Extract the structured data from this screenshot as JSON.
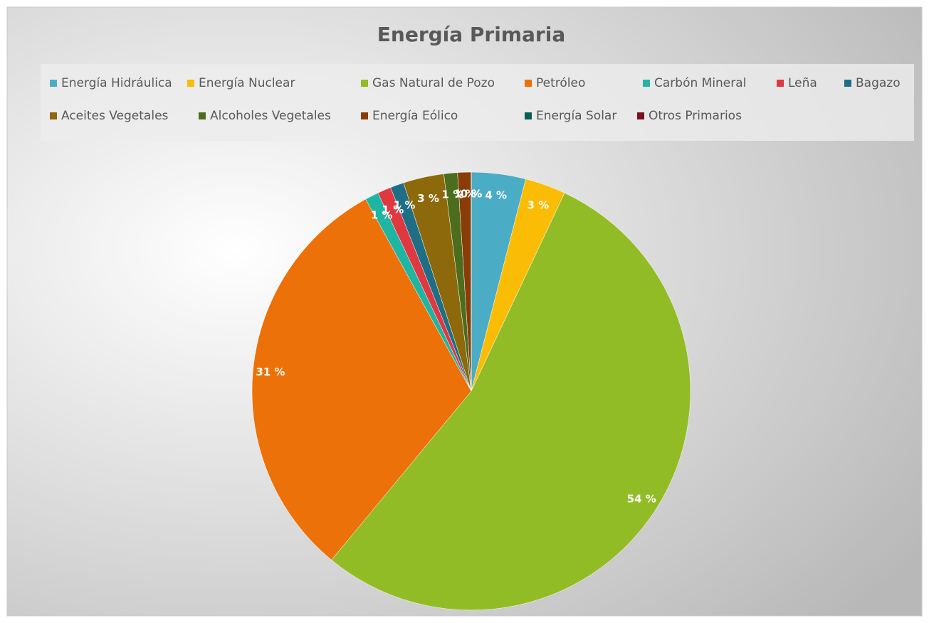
{
  "chart_data": {
    "type": "pie",
    "title": "Energía Primaria",
    "categories": [
      "Energía Hidráulica",
      "Energía Nuclear",
      "Gas Natural de Pozo",
      "Petróleo",
      "Carbón Mineral",
      "Leña",
      "Bagazo",
      "Aceites Vegetales",
      "Alcoholes Vegetales",
      "Energía Eólico",
      "Energía Solar",
      "Otros Primarios"
    ],
    "values": [
      4,
      3,
      54,
      31,
      1,
      1,
      1,
      3,
      1,
      1,
      0,
      0
    ],
    "value_labels": [
      "4 %",
      "3 %",
      "54 %",
      "31 %",
      "1 %",
      "1 %",
      "1 %",
      "3 %",
      "1 %",
      "1 %",
      "0 %",
      "0 %"
    ],
    "colors": [
      "#4bacc6",
      "#fbbc05",
      "#92bc25",
      "#ec7109",
      "#1fb5a3",
      "#df3840",
      "#1e6e86",
      "#8e690b",
      "#4c6d1c",
      "#8a3c06",
      "#0b5e55",
      "#7a1320"
    ],
    "legend": "top"
  }
}
